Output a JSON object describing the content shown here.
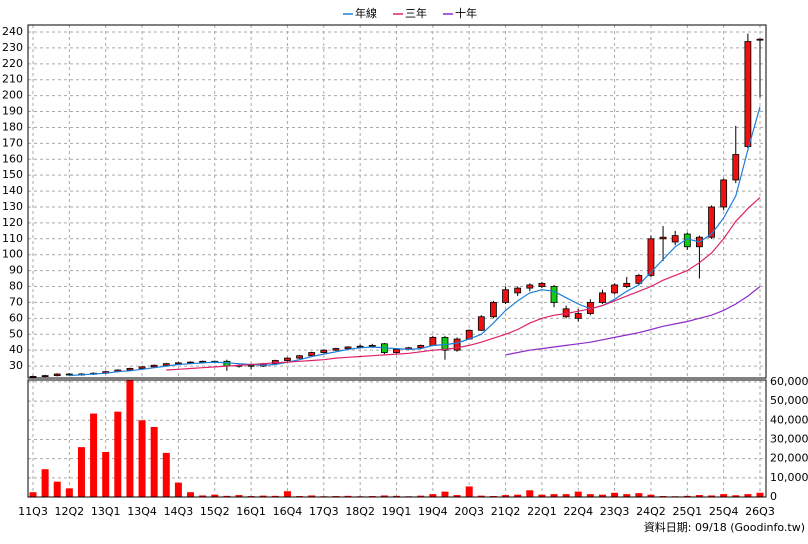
{
  "chart_data": {
    "type": "candlestick",
    "categories": [
      "11Q3",
      null,
      null,
      "12Q2",
      null,
      null,
      "13Q1",
      null,
      null,
      "13Q4",
      null,
      null,
      "14Q3",
      null,
      null,
      "15Q2",
      null,
      null,
      "16Q1",
      null,
      null,
      "16Q4",
      null,
      null,
      "17Q3",
      null,
      null,
      "18Q2",
      null,
      null,
      "19Q1",
      null,
      null,
      "19Q4",
      null,
      null,
      "20Q3",
      null,
      null,
      "21Q2",
      null,
      null,
      "22Q1",
      null,
      null,
      "22Q4",
      null,
      null,
      "23Q3",
      null,
      null,
      "24Q2",
      null,
      null,
      "25Q1",
      null,
      null,
      "25Q4",
      null,
      null,
      "26Q3"
    ],
    "open": [
      23,
      23.5,
      24,
      25,
      24.5,
      25,
      25.5,
      26.5,
      27.5,
      28.5,
      29.5,
      30.5,
      31.5,
      32,
      32.5,
      33,
      33,
      30,
      30.5,
      30,
      31.5,
      33.5,
      35,
      36.5,
      38.5,
      40,
      41,
      42,
      42.5,
      44,
      38.5,
      40.5,
      41.5,
      43,
      48,
      40,
      47,
      52.5,
      61,
      70,
      76,
      79,
      80,
      80,
      61,
      60,
      63,
      70,
      76,
      80,
      82,
      87,
      110,
      108,
      113,
      105,
      111,
      130,
      147,
      168,
      235
    ],
    "high": [
      24,
      24.5,
      25.5,
      25.5,
      25.5,
      26,
      27,
      28,
      29,
      30,
      31,
      32,
      32.5,
      33,
      33.5,
      33.5,
      34,
      31,
      31.5,
      32,
      34,
      35.5,
      37,
      39,
      40.5,
      41.5,
      42.5,
      43.5,
      44,
      44.5,
      41,
      42,
      43.5,
      49,
      49,
      48,
      53,
      62,
      71,
      80,
      80,
      82,
      83,
      81,
      68,
      66,
      72,
      78,
      82,
      86,
      88,
      112,
      118,
      115,
      114,
      112,
      131,
      148,
      181,
      239,
      236
    ],
    "low": [
      22.5,
      23,
      23.5,
      24,
      24,
      24.5,
      25,
      26,
      27,
      28,
      29,
      30,
      31,
      31.5,
      32,
      32,
      27,
      29,
      28,
      29.5,
      31,
      33,
      34.5,
      36,
      38,
      39.5,
      40.5,
      41,
      41.5,
      37.5,
      38,
      40,
      41,
      42.5,
      34,
      39,
      46.5,
      52,
      60,
      69,
      74,
      77,
      79,
      67,
      60,
      58,
      62,
      69,
      75,
      79,
      81,
      86,
      96,
      106,
      103,
      85,
      110,
      128,
      145,
      167,
      199
    ],
    "close": [
      23.5,
      24,
      25,
      24.5,
      25,
      25.5,
      26.5,
      27.5,
      28.5,
      29.5,
      30.5,
      31.5,
      32,
      32.5,
      33,
      32.5,
      30,
      30.5,
      30,
      31.5,
      33.5,
      35,
      36.5,
      38.5,
      40,
      41,
      42,
      42.5,
      43,
      38.5,
      40.5,
      41.5,
      43,
      48,
      40,
      47,
      52.5,
      61,
      70,
      78,
      79,
      81,
      82,
      70,
      66,
      63,
      70,
      76,
      81,
      82,
      87,
      110,
      111,
      112,
      105,
      111,
      130,
      147,
      163,
      234,
      235.5
    ],
    "up_color": "#ee1111",
    "down_color": "#11cc11",
    "series": [
      {
        "name": "年線",
        "color": "#1e7fd8",
        "values": [
          null,
          null,
          null,
          24,
          24.5,
          25,
          25.5,
          26.5,
          27,
          28,
          29,
          30,
          31,
          31.5,
          32,
          32.5,
          32,
          31.5,
          31,
          30.5,
          31,
          32.5,
          34,
          36,
          37.5,
          39,
          40.5,
          41.5,
          42,
          41.5,
          41,
          40.5,
          41,
          43,
          43.5,
          44.5,
          47,
          50,
          57,
          65,
          71,
          76,
          78,
          77,
          73,
          69,
          66,
          68,
          72,
          77,
          81,
          89,
          97,
          105,
          110,
          108,
          113,
          123,
          137,
          166,
          193
        ]
      },
      {
        "name": "三年",
        "color": "#e0206a",
        "values": [
          null,
          null,
          null,
          null,
          null,
          null,
          null,
          null,
          null,
          null,
          null,
          27.5,
          28,
          28.5,
          29,
          29.5,
          30,
          30.5,
          31,
          31.5,
          32,
          32.5,
          33,
          33.5,
          34,
          35,
          35.5,
          36,
          36.5,
          37,
          37.5,
          38,
          39,
          40,
          40.5,
          41.5,
          43,
          45,
          47.5,
          50,
          53,
          57,
          60,
          62,
          63,
          64.5,
          66,
          68,
          71,
          74,
          77,
          80,
          84,
          87,
          90,
          95,
          101,
          110,
          121,
          129,
          136
        ]
      },
      {
        "name": "十年",
        "color": "#8e2bc8",
        "values": [
          null,
          null,
          null,
          null,
          null,
          null,
          null,
          null,
          null,
          null,
          null,
          null,
          null,
          null,
          null,
          null,
          null,
          null,
          null,
          null,
          null,
          null,
          null,
          null,
          null,
          null,
          null,
          null,
          null,
          null,
          null,
          null,
          null,
          null,
          null,
          null,
          null,
          null,
          null,
          37,
          38.5,
          40,
          41,
          42,
          43,
          44,
          45,
          46.5,
          48,
          49.5,
          51,
          53,
          55,
          56.5,
          58,
          60,
          62,
          65,
          69,
          74,
          80
        ]
      }
    ],
    "ylim": [
      22.5,
      244.4
    ],
    "yticks": [
      30,
      40,
      50,
      60,
      70,
      80,
      90,
      100,
      110,
      120,
      130,
      140,
      150,
      160,
      170,
      180,
      190,
      200,
      210,
      220,
      230,
      240
    ],
    "grid": true,
    "volume": {
      "color": "#ff0000",
      "values": [
        2500,
        14500,
        8000,
        4500,
        26000,
        43500,
        23500,
        44500,
        61000,
        40000,
        36500,
        23000,
        7500,
        2500,
        800,
        1200,
        600,
        1000,
        500,
        700,
        600,
        3000,
        500,
        800,
        400,
        500,
        600,
        400,
        500,
        800,
        600,
        400,
        700,
        1500,
        2800,
        1000,
        5500,
        700,
        500,
        1000,
        1200,
        3500,
        1200,
        1500,
        1500,
        2800,
        1500,
        1200,
        2200,
        1500,
        2000,
        1200,
        500,
        400,
        600,
        1000,
        800,
        1500,
        900,
        1500,
        2200
      ],
      "ylim": [
        0,
        61000
      ],
      "yticks": [
        0,
        {
          "value": 10000,
          "label": "10,000"
        },
        {
          "value": 20000,
          "label": "20,000"
        },
        {
          "value": 30000,
          "label": "30,000"
        },
        {
          "value": 40000,
          "label": "40,000"
        },
        {
          "value": 50000,
          "label": "50,000"
        },
        {
          "value": 60000,
          "label": "60,000"
        }
      ]
    },
    "note": "資料日期: 09/18 (Goodinfo.tw)"
  }
}
